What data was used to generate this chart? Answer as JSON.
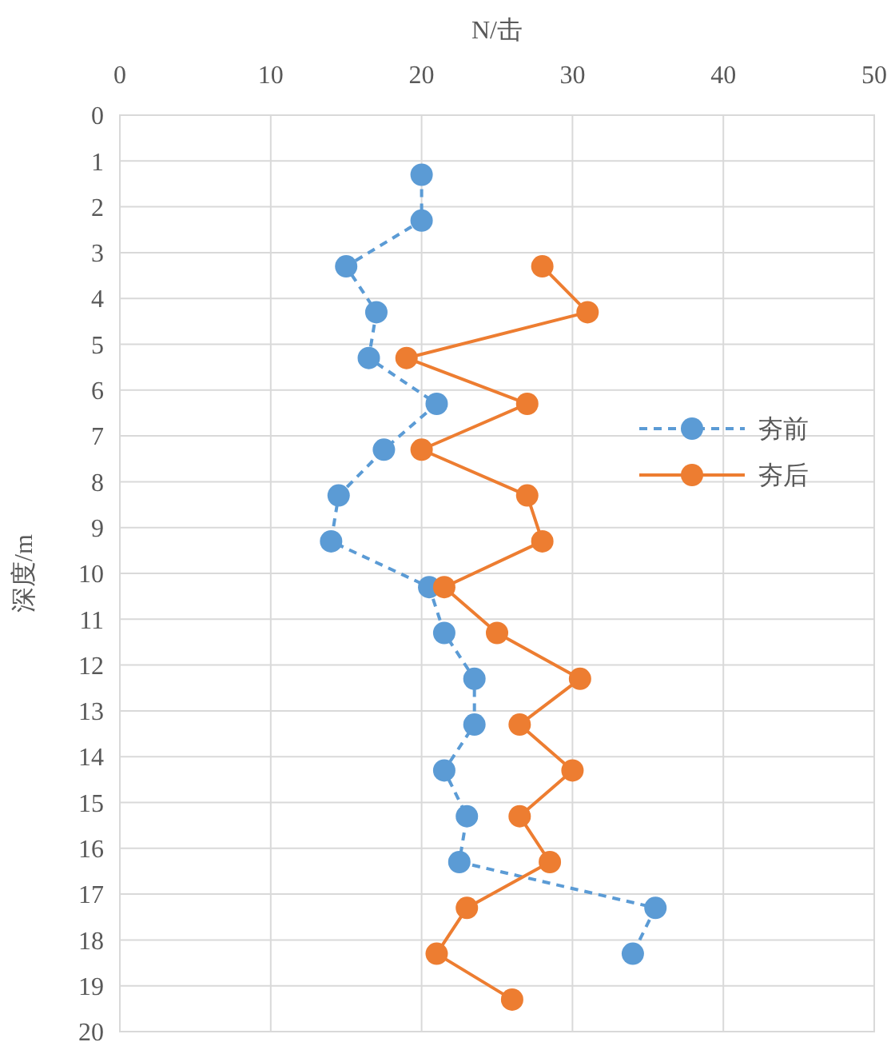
{
  "chart_data": {
    "type": "line",
    "xlabel": "N/击",
    "ylabel": "深度/m",
    "xlim": [
      0,
      50
    ],
    "xticks": [
      0,
      10,
      20,
      30,
      40,
      50
    ],
    "ylim": [
      20,
      0
    ],
    "yticks": [
      0,
      1,
      2,
      3,
      4,
      5,
      6,
      7,
      8,
      9,
      10,
      11,
      12,
      13,
      14,
      15,
      16,
      17,
      18,
      19,
      20
    ],
    "grid": true,
    "legend": "right",
    "marker": "circle",
    "series": [
      {
        "name": "夯前",
        "color": "#5b9bd5",
        "line_style": "dashed",
        "x": [
          20,
          20,
          15,
          17,
          16.5,
          21,
          17.5,
          14.5,
          14,
          20.5,
          21.5,
          23.5,
          23.5,
          21.5,
          23,
          22.5,
          35.5,
          34
        ],
        "values": [
          1.3,
          2.3,
          3.3,
          4.3,
          5.3,
          6.3,
          7.3,
          8.3,
          9.3,
          10.3,
          11.3,
          12.3,
          13.3,
          14.3,
          15.3,
          16.3,
          17.3,
          18.3
        ]
      },
      {
        "name": "夯后",
        "color": "#ed7d31",
        "line_style": "solid",
        "x": [
          28,
          31,
          19,
          27,
          20,
          27,
          28,
          21.5,
          25,
          30.5,
          26.5,
          30,
          26.5,
          28.5,
          23,
          21,
          26
        ],
        "values": [
          3.3,
          4.3,
          5.3,
          6.3,
          7.3,
          8.3,
          9.3,
          10.3,
          11.3,
          12.3,
          13.3,
          14.3,
          15.3,
          16.3,
          17.3,
          18.3,
          19.3
        ]
      }
    ]
  }
}
